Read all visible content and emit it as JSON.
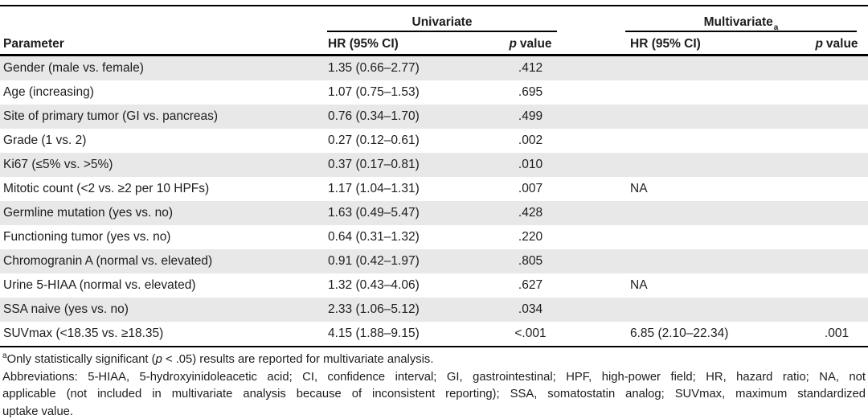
{
  "table": {
    "groups": [
      {
        "label": "Univariate",
        "footnote_marker": ""
      },
      {
        "label": "Multivariate",
        "footnote_marker": "a"
      }
    ],
    "columns": {
      "parameter": "Parameter",
      "hr": "HR (95% CI)",
      "p_word": "p",
      "value_word": "value"
    },
    "rows": [
      {
        "parameter": "Gender (male vs. female)",
        "uni_hr": "1.35 (0.66–2.77)",
        "uni_p": ".412",
        "multi_hr": "",
        "multi_p": ""
      },
      {
        "parameter": "Age (increasing)",
        "uni_hr": "1.07 (0.75–1.53)",
        "uni_p": ".695",
        "multi_hr": "",
        "multi_p": ""
      },
      {
        "parameter": "Site of primary tumor (GI vs. pancreas)",
        "uni_hr": "0.76 (0.34–1.70)",
        "uni_p": ".499",
        "multi_hr": "",
        "multi_p": ""
      },
      {
        "parameter": "Grade (1 vs. 2)",
        "uni_hr": "0.27 (0.12–0.61)",
        "uni_p": ".002",
        "multi_hr": "",
        "multi_p": ""
      },
      {
        "parameter": "Ki67 (≤5% vs. >5%)",
        "uni_hr": "0.37 (0.17–0.81)",
        "uni_p": ".010",
        "multi_hr": "",
        "multi_p": ""
      },
      {
        "parameter": "Mitotic count (<2 vs. ≥2 per 10 HPFs)",
        "uni_hr": "1.17 (1.04–1.31)",
        "uni_p": ".007",
        "multi_hr": "NA",
        "multi_p": ""
      },
      {
        "parameter": "Germline mutation (yes vs. no)",
        "uni_hr": "1.63 (0.49–5.47)",
        "uni_p": ".428",
        "multi_hr": "",
        "multi_p": ""
      },
      {
        "parameter": "Functioning tumor (yes vs. no)",
        "uni_hr": "0.64 (0.31–1.32)",
        "uni_p": ".220",
        "multi_hr": "",
        "multi_p": ""
      },
      {
        "parameter": "Chromogranin A (normal vs. elevated)",
        "uni_hr": "0.91 (0.42–1.97)",
        "uni_p": ".805",
        "multi_hr": "",
        "multi_p": ""
      },
      {
        "parameter": "Urine 5-HIAA (normal vs. elevated)",
        "uni_hr": "1.32 (0.43–4.06)",
        "uni_p": ".627",
        "multi_hr": "NA",
        "multi_p": ""
      },
      {
        "parameter": "SSA naive (yes vs. no)",
        "uni_hr": "2.33 (1.06–5.12)",
        "uni_p": ".034",
        "multi_hr": "",
        "multi_p": ""
      },
      {
        "parameter": "SUVmax (<18.35 vs. ≥18.35)",
        "uni_hr": "4.15 (1.88–9.15)",
        "uni_p": "<.001",
        "multi_hr": "6.85 (2.10–22.34)",
        "multi_p": ".001"
      }
    ],
    "colors": {
      "stripe": "#e8e8e8",
      "rule": "#000000",
      "ink": "#1d1d1d"
    }
  },
  "footnotes": {
    "marker": "a",
    "sig_pre": "Only statistically significant (",
    "p_word": "p",
    "sig_post": " < .05) results are reported for multivariate analysis.",
    "abbrev_lines": [
      "Abbreviations: 5-HIAA, 5-hydroxyinidoleacetic acid; CI, confidence interval; GI, gastrointestinal; HPF, high-power field; HR, hazard ratio; NA, not",
      "applicable (not included in multivariate analysis because of inconsistent reporting); SSA, somatostatin analog; SUVmax, maximum standardized",
      "uptake value."
    ]
  }
}
